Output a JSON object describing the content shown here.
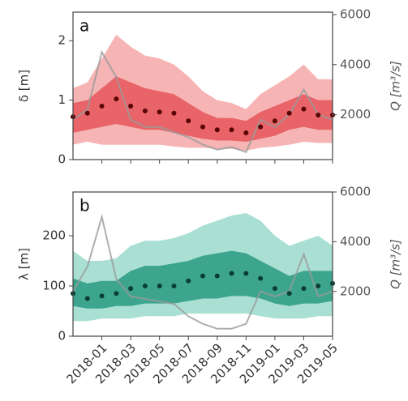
{
  "chart_data": [
    {
      "type": "line",
      "panel_label": "a",
      "ylabel": "δ [m]",
      "y2label": "Q [m³/s]",
      "x": [
        "2017-11",
        "2017-12",
        "2018-01",
        "2018-02",
        "2018-03",
        "2018-04",
        "2018-05",
        "2018-06",
        "2018-07",
        "2018-08",
        "2018-09",
        "2018-10",
        "2018-11",
        "2018-12",
        "2019-01",
        "2019-02",
        "2019-03",
        "2019-04",
        "2019-05"
      ],
      "xlim": [
        "2017-11",
        "2019-05"
      ],
      "ylim": [
        0,
        2.48
      ],
      "yticks": [
        0,
        1,
        2
      ],
      "y2lim": [
        200,
        6100
      ],
      "y2ticks": [
        2000,
        4000,
        6000
      ],
      "bands": [
        {
          "color": "#f6b4b4",
          "lower": [
            0.25,
            0.3,
            0.25,
            0.25,
            0.25,
            0.25,
            0.25,
            0.22,
            0.2,
            0.2,
            0.18,
            0.18,
            0.15,
            0.2,
            0.22,
            0.25,
            0.3,
            0.28,
            0.28
          ],
          "upper": [
            1.2,
            1.3,
            1.7,
            2.1,
            1.9,
            1.75,
            1.7,
            1.6,
            1.4,
            1.15,
            1.0,
            0.95,
            0.85,
            1.1,
            1.25,
            1.4,
            1.6,
            1.35,
            1.35
          ]
        },
        {
          "color": "#e86468",
          "lower": [
            0.45,
            0.5,
            0.55,
            0.6,
            0.55,
            0.5,
            0.5,
            0.45,
            0.4,
            0.35,
            0.32,
            0.32,
            0.3,
            0.35,
            0.4,
            0.5,
            0.55,
            0.5,
            0.5
          ],
          "upper": [
            0.95,
            1.0,
            1.2,
            1.4,
            1.3,
            1.2,
            1.15,
            1.1,
            0.95,
            0.8,
            0.7,
            0.7,
            0.65,
            0.8,
            0.9,
            1.0,
            1.1,
            1.0,
            1.0
          ]
        }
      ],
      "series": [
        {
          "color": "#9a9a9a",
          "axis": "y2",
          "values": [
            1800,
            2200,
            4500,
            3500,
            1800,
            1500,
            1500,
            1300,
            1100,
            800,
            600,
            700,
            500,
            1800,
            1500,
            2000,
            3000,
            2000,
            1800
          ]
        },
        {
          "color": "#5a0505",
          "values": [
            0.72,
            0.78,
            0.9,
            1.02,
            0.9,
            0.82,
            0.8,
            0.78,
            0.65,
            0.55,
            0.5,
            0.5,
            0.45,
            0.55,
            0.65,
            0.78,
            0.85,
            0.75,
            0.75
          ]
        }
      ]
    },
    {
      "type": "line",
      "panel_label": "b",
      "ylabel": "λ [m]",
      "y2label": "Q [m³/s]",
      "x": [
        "2017-11",
        "2017-12",
        "2018-01",
        "2018-02",
        "2018-03",
        "2018-04",
        "2018-05",
        "2018-06",
        "2018-07",
        "2018-08",
        "2018-09",
        "2018-10",
        "2018-11",
        "2018-12",
        "2019-01",
        "2019-02",
        "2019-03",
        "2019-04",
        "2019-05"
      ],
      "xlim": [
        "2017-11",
        "2019-05"
      ],
      "xticks": [
        "2018-01",
        "2018-03",
        "2018-05",
        "2018-07",
        "2018-09",
        "2018-11",
        "2019-01",
        "2019-03",
        "2019-05"
      ],
      "ylim": [
        0,
        287
      ],
      "yticks": [
        0,
        100,
        200
      ],
      "y2lim": [
        200,
        6000
      ],
      "y2ticks": [
        2000,
        4000,
        6000
      ],
      "bands": [
        {
          "color": "#aadfd3",
          "lower": [
            30,
            30,
            35,
            35,
            35,
            40,
            40,
            40,
            45,
            45,
            45,
            45,
            45,
            40,
            35,
            35,
            35,
            40,
            40
          ],
          "upper": [
            170,
            150,
            150,
            155,
            180,
            190,
            190,
            195,
            205,
            220,
            230,
            240,
            245,
            230,
            200,
            180,
            190,
            200,
            180
          ]
        },
        {
          "color": "#3da58d",
          "lower": [
            60,
            55,
            55,
            60,
            60,
            65,
            65,
            65,
            70,
            75,
            75,
            80,
            80,
            75,
            65,
            60,
            65,
            65,
            70
          ],
          "upper": [
            115,
            105,
            110,
            110,
            130,
            140,
            140,
            145,
            150,
            160,
            165,
            170,
            165,
            150,
            135,
            120,
            130,
            130,
            130
          ]
        }
      ],
      "series": [
        {
          "color": "#9a9a9a",
          "axis": "y2",
          "values": [
            2000,
            3000,
            5000,
            2500,
            1800,
            1700,
            1600,
            1500,
            1000,
            700,
            500,
            500,
            700,
            2000,
            1800,
            2000,
            3500,
            1800,
            2000
          ]
        },
        {
          "color": "#0a3d33",
          "values": [
            85,
            75,
            80,
            85,
            95,
            100,
            100,
            100,
            110,
            120,
            120,
            125,
            125,
            115,
            95,
            85,
            95,
            100,
            105
          ]
        }
      ]
    }
  ]
}
